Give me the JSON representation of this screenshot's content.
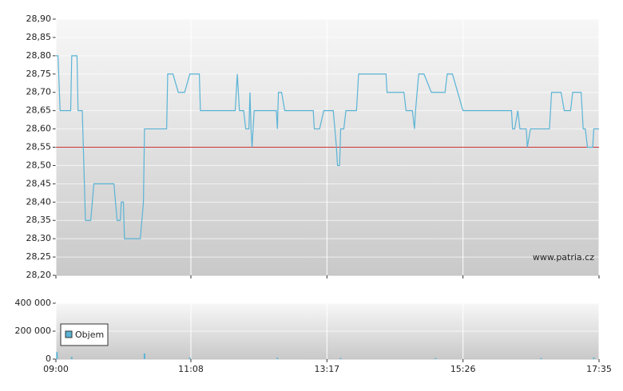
{
  "chart_data": [
    {
      "type": "line",
      "annotation": "www.patria.cz",
      "reference_line": {
        "value": 28.55,
        "color": "#cc3333"
      },
      "grid": true,
      "xlim": [
        "09:00",
        "17:35"
      ],
      "ylim": [
        28.2,
        28.9
      ],
      "yticks": [
        {
          "value": 28.2,
          "label": "28,20"
        },
        {
          "value": 28.25,
          "label": "28,25"
        },
        {
          "value": 28.3,
          "label": "28,30"
        },
        {
          "value": 28.35,
          "label": "28,35"
        },
        {
          "value": 28.4,
          "label": "28,40"
        },
        {
          "value": 28.45,
          "label": "28,45"
        },
        {
          "value": 28.5,
          "label": "28,50"
        },
        {
          "value": 28.55,
          "label": "28,55"
        },
        {
          "value": 28.6,
          "label": "28,60"
        },
        {
          "value": 28.65,
          "label": "28,65"
        },
        {
          "value": 28.7,
          "label": "28,70"
        },
        {
          "value": 28.75,
          "label": "28,75"
        },
        {
          "value": 28.8,
          "label": "28,80"
        },
        {
          "value": 28.85,
          "label": "28,85"
        },
        {
          "value": 28.9,
          "label": "28,90"
        }
      ],
      "x": [
        "09:00",
        "09:02",
        "09:04",
        "09:14",
        "09:15",
        "09:20",
        "09:21",
        "09:25",
        "09:28",
        "09:33",
        "09:36",
        "09:55",
        "09:58",
        "10:01",
        "10:02",
        "10:04",
        "10:05",
        "10:20",
        "10:23",
        "10:24",
        "10:45",
        "10:46",
        "10:51",
        "10:56",
        "11:02",
        "11:07",
        "11:16",
        "11:17",
        "11:50",
        "11:52",
        "11:54",
        "11:58",
        "12:00",
        "12:03",
        "12:04",
        "12:05",
        "12:06",
        "12:08",
        "12:29",
        "12:30",
        "12:31",
        "12:34",
        "12:37",
        "13:04",
        "13:05",
        "13:10",
        "13:14",
        "13:23",
        "13:26",
        "13:27",
        "13:29",
        "13:30",
        "13:33",
        "13:35",
        "13:45",
        "13:47",
        "14:13",
        "14:14",
        "14:30",
        "14:32",
        "14:38",
        "14:40",
        "14:41",
        "14:44",
        "14:49",
        "14:56",
        "15:09",
        "15:11",
        "15:16",
        "15:26",
        "16:12",
        "16:13",
        "16:15",
        "16:18",
        "16:20",
        "16:26",
        "16:27",
        "16:30",
        "16:48",
        "16:50",
        "16:59",
        "17:02",
        "17:08",
        "17:10",
        "17:18",
        "17:20",
        "17:22",
        "17:24",
        "17:29",
        "17:30",
        "17:35"
      ],
      "series": [
        {
          "color": "#5ab4d6",
          "values": [
            28.8,
            28.8,
            28.65,
            28.65,
            28.8,
            28.8,
            28.65,
            28.65,
            28.35,
            28.35,
            28.45,
            28.45,
            28.35,
            28.35,
            28.4,
            28.4,
            28.3,
            28.3,
            28.4,
            28.6,
            28.6,
            28.75,
            28.75,
            28.7,
            28.7,
            28.75,
            28.75,
            28.65,
            28.65,
            28.75,
            28.65,
            28.65,
            28.6,
            28.6,
            28.7,
            28.6,
            28.55,
            28.65,
            28.65,
            28.6,
            28.7,
            28.7,
            28.65,
            28.65,
            28.6,
            28.6,
            28.65,
            28.65,
            28.55,
            28.5,
            28.5,
            28.6,
            28.6,
            28.65,
            28.65,
            28.75,
            28.75,
            28.7,
            28.7,
            28.65,
            28.65,
            28.6,
            28.65,
            28.75,
            28.75,
            28.7,
            28.7,
            28.75,
            28.75,
            28.65,
            28.65,
            28.6,
            28.6,
            28.65,
            28.6,
            28.6,
            28.55,
            28.6,
            28.6,
            28.7,
            28.7,
            28.65,
            28.65,
            28.7,
            28.7,
            28.6,
            28.6,
            28.55,
            28.55,
            28.6,
            28.6
          ]
        }
      ]
    },
    {
      "type": "bar",
      "grid": true,
      "xlim": [
        "09:00",
        "17:35"
      ],
      "xticks": [
        "09:00",
        "11:08",
        "13:17",
        "15:26",
        "17:35"
      ],
      "ylim": [
        0,
        400000
      ],
      "yticks": [
        0,
        {
          "value": 200000,
          "label": "200 000"
        },
        {
          "value": 400000,
          "label": "400 000"
        }
      ],
      "x": [
        "09:01",
        "09:15",
        "10:24",
        "11:07",
        "12:30",
        "13:30",
        "15:00",
        "16:40",
        "17:30"
      ],
      "series": [
        {
          "name": "Objem",
          "color": "#5ab4d6",
          "values": [
            50000,
            15000,
            40000,
            12000,
            10000,
            8000,
            8000,
            8000,
            12000
          ]
        }
      ]
    }
  ]
}
